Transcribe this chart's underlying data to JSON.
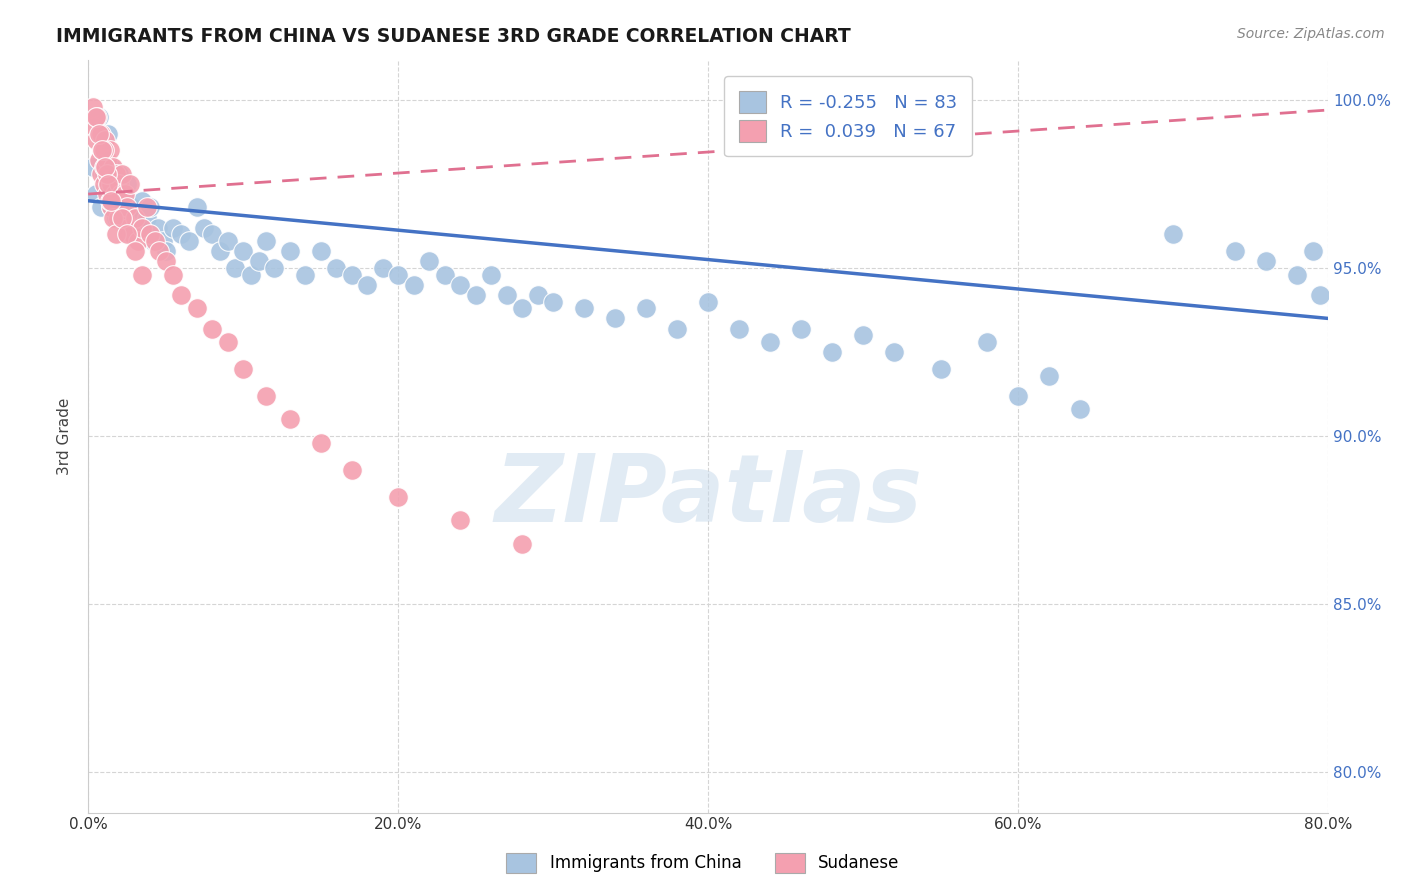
{
  "title": "IMMIGRANTS FROM CHINA VS SUDANESE 3RD GRADE CORRELATION CHART",
  "source_text": "Source: ZipAtlas.com",
  "ylabel": "3rd Grade",
  "xlim": [
    0.0,
    0.8
  ],
  "ylim": [
    0.788,
    1.012
  ],
  "xtick_labels": [
    "0.0%",
    "20.0%",
    "40.0%",
    "60.0%",
    "80.0%"
  ],
  "xtick_vals": [
    0.0,
    0.2,
    0.4,
    0.6,
    0.8
  ],
  "ytick_labels": [
    "80.0%",
    "85.0%",
    "90.0%",
    "95.0%",
    "100.0%"
  ],
  "ytick_vals": [
    0.8,
    0.85,
    0.9,
    0.95,
    1.0
  ],
  "legend_blue_r": "-0.255",
  "legend_blue_n": "83",
  "legend_pink_r": "0.039",
  "legend_pink_n": "67",
  "blue_color": "#a8c4e0",
  "pink_color": "#f4a0b0",
  "blue_line_color": "#4472c4",
  "pink_line_color": "#e07090",
  "blue_line_x0": 0.0,
  "blue_line_x1": 0.8,
  "blue_line_y0": 0.97,
  "blue_line_y1": 0.935,
  "pink_line_x0": 0.0,
  "pink_line_x1": 0.8,
  "pink_line_y0": 0.972,
  "pink_line_y1": 0.997,
  "blue_data_x": [
    0.003,
    0.005,
    0.007,
    0.008,
    0.01,
    0.01,
    0.012,
    0.013,
    0.015,
    0.015,
    0.017,
    0.018,
    0.02,
    0.02,
    0.022,
    0.023,
    0.025,
    0.025,
    0.027,
    0.028,
    0.03,
    0.032,
    0.035,
    0.038,
    0.04,
    0.042,
    0.045,
    0.048,
    0.05,
    0.055,
    0.06,
    0.065,
    0.07,
    0.075,
    0.08,
    0.085,
    0.09,
    0.095,
    0.1,
    0.105,
    0.11,
    0.115,
    0.12,
    0.13,
    0.14,
    0.15,
    0.16,
    0.17,
    0.18,
    0.19,
    0.2,
    0.21,
    0.22,
    0.23,
    0.24,
    0.25,
    0.26,
    0.27,
    0.28,
    0.29,
    0.3,
    0.32,
    0.34,
    0.36,
    0.38,
    0.4,
    0.42,
    0.44,
    0.46,
    0.48,
    0.5,
    0.52,
    0.55,
    0.58,
    0.6,
    0.62,
    0.64,
    0.7,
    0.74,
    0.76,
    0.78,
    0.79,
    0.795
  ],
  "blue_data_y": [
    0.98,
    0.972,
    0.995,
    0.968,
    0.978,
    0.985,
    0.975,
    0.99,
    0.968,
    0.98,
    0.975,
    0.965,
    0.97,
    0.978,
    0.965,
    0.972,
    0.968,
    0.975,
    0.96,
    0.968,
    0.965,
    0.962,
    0.97,
    0.965,
    0.968,
    0.958,
    0.962,
    0.958,
    0.955,
    0.962,
    0.96,
    0.958,
    0.968,
    0.962,
    0.96,
    0.955,
    0.958,
    0.95,
    0.955,
    0.948,
    0.952,
    0.958,
    0.95,
    0.955,
    0.948,
    0.955,
    0.95,
    0.948,
    0.945,
    0.95,
    0.948,
    0.945,
    0.952,
    0.948,
    0.945,
    0.942,
    0.948,
    0.942,
    0.938,
    0.942,
    0.94,
    0.938,
    0.935,
    0.938,
    0.932,
    0.94,
    0.932,
    0.928,
    0.932,
    0.925,
    0.93,
    0.925,
    0.92,
    0.928,
    0.912,
    0.918,
    0.908,
    0.96,
    0.955,
    0.952,
    0.948,
    0.955,
    0.942
  ],
  "pink_data_x": [
    0.003,
    0.004,
    0.005,
    0.006,
    0.007,
    0.008,
    0.008,
    0.009,
    0.01,
    0.01,
    0.011,
    0.012,
    0.012,
    0.013,
    0.014,
    0.015,
    0.015,
    0.016,
    0.017,
    0.018,
    0.019,
    0.02,
    0.02,
    0.021,
    0.022,
    0.023,
    0.024,
    0.025,
    0.026,
    0.027,
    0.028,
    0.03,
    0.032,
    0.035,
    0.038,
    0.04,
    0.043,
    0.046,
    0.05,
    0.055,
    0.06,
    0.07,
    0.08,
    0.09,
    0.1,
    0.115,
    0.13,
    0.15,
    0.17,
    0.2,
    0.24,
    0.28,
    0.01,
    0.012,
    0.014,
    0.016,
    0.018,
    0.005,
    0.007,
    0.009,
    0.011,
    0.013,
    0.015,
    0.022,
    0.025,
    0.03,
    0.035
  ],
  "pink_data_y": [
    0.998,
    0.992,
    0.988,
    0.995,
    0.982,
    0.978,
    0.99,
    0.985,
    0.98,
    0.975,
    0.988,
    0.982,
    0.972,
    0.978,
    0.985,
    0.975,
    0.968,
    0.98,
    0.972,
    0.978,
    0.965,
    0.975,
    0.968,
    0.972,
    0.978,
    0.965,
    0.972,
    0.968,
    0.962,
    0.975,
    0.96,
    0.965,
    0.958,
    0.962,
    0.968,
    0.96,
    0.958,
    0.955,
    0.952,
    0.948,
    0.942,
    0.938,
    0.932,
    0.928,
    0.92,
    0.912,
    0.905,
    0.898,
    0.89,
    0.882,
    0.875,
    0.868,
    0.985,
    0.978,
    0.97,
    0.965,
    0.96,
    0.995,
    0.99,
    0.985,
    0.98,
    0.975,
    0.97,
    0.965,
    0.96,
    0.955,
    0.948
  ],
  "watermark_text": "ZIPatlas",
  "background_color": "#ffffff",
  "grid_color": "#d5d5d5"
}
